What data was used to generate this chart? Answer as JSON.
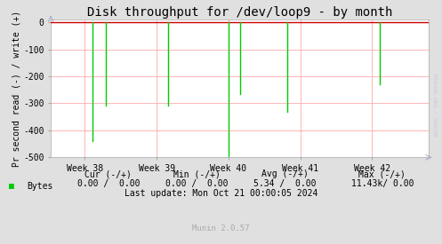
{
  "title": "Disk throughput for /dev/loop9 - by month",
  "ylabel": "Pr second read (-) / write (+)",
  "xlabel_ticks": [
    "Week 38",
    "Week 39",
    "Week 40",
    "Week 41",
    "Week 42"
  ],
  "xlabel_tick_positions": [
    0.09,
    0.28,
    0.47,
    0.66,
    0.85
  ],
  "ylim": [
    -500,
    10
  ],
  "yticks": [
    0,
    -100,
    -200,
    -300,
    -400,
    -500
  ],
  "bg_color": "#e0e0e0",
  "plot_bg_color": "#ffffff",
  "grid_color": "#ffaaaa",
  "line_color": "#00cc00",
  "zero_line_color": "#cc0000",
  "spike_x": [
    0.11,
    0.145,
    0.31,
    0.47,
    0.5,
    0.625,
    0.87
  ],
  "spike_y": [
    -440,
    -310,
    -310,
    -500,
    -265,
    -330,
    -230
  ],
  "legend_label": "Bytes",
  "legend_color": "#00cc00",
  "footer_update": "Last update: Mon Oct 21 00:00:05 2024",
  "munin_version": "Munin 2.0.57",
  "watermark": "RRDTOOL / TOBI OETIKER",
  "title_fontsize": 10,
  "axis_fontsize": 7,
  "tick_fontsize": 7,
  "footer_fontsize": 7
}
